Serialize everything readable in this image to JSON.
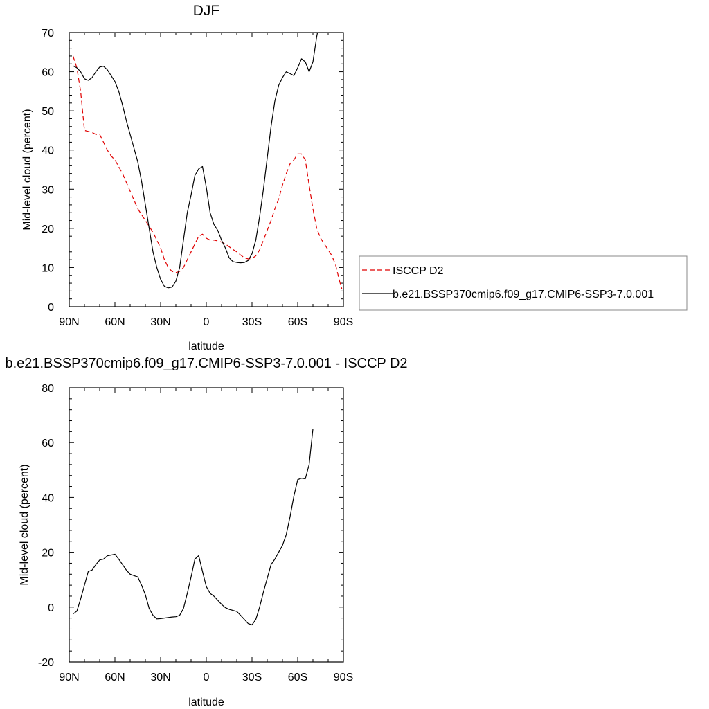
{
  "chart_data": [
    {
      "type": "line",
      "title": "DJF",
      "xlabel": "latitude",
      "ylabel": "Mid-level cloud (percent)",
      "xlim": [
        -90,
        90
      ],
      "ylim": [
        0,
        70
      ],
      "x_ticks": [
        {
          "value": -90,
          "label": "90N"
        },
        {
          "value": -60,
          "label": "60N"
        },
        {
          "value": -30,
          "label": "30N"
        },
        {
          "value": 0,
          "label": "0"
        },
        {
          "value": 30,
          "label": "30S"
        },
        {
          "value": 60,
          "label": "60S"
        },
        {
          "value": 90,
          "label": "90S"
        }
      ],
      "y_ticks": [
        {
          "value": 0,
          "label": "0"
        },
        {
          "value": 10,
          "label": "10"
        },
        {
          "value": 20,
          "label": "20"
        },
        {
          "value": 30,
          "label": "30"
        },
        {
          "value": 40,
          "label": "40"
        },
        {
          "value": 50,
          "label": "50"
        },
        {
          "value": 60,
          "label": "60"
        },
        {
          "value": 70,
          "label": "70"
        }
      ],
      "legend": {
        "position": "right"
      },
      "series": [
        {
          "name": "ISCCP D2",
          "color": "#e00000",
          "dash": true,
          "points": [
            [
              -87.5,
              64
            ],
            [
              -85,
              61
            ],
            [
              -82.5,
              55
            ],
            [
              -80,
              45
            ],
            [
              -75,
              44.5
            ],
            [
              -72.5,
              44
            ],
            [
              -70,
              44
            ],
            [
              -67.5,
              42
            ],
            [
              -65,
              40
            ],
            [
              -62.5,
              38.5
            ],
            [
              -60,
              37.5
            ],
            [
              -55,
              34
            ],
            [
              -50,
              29.5
            ],
            [
              -45,
              25
            ],
            [
              -40,
              22
            ],
            [
              -35,
              19
            ],
            [
              -30,
              15
            ],
            [
              -27.5,
              12
            ],
            [
              -25,
              10
            ],
            [
              -22.5,
              9
            ],
            [
              -20,
              8.7
            ],
            [
              -17.5,
              9
            ],
            [
              -15,
              10
            ],
            [
              -12.5,
              12
            ],
            [
              -10,
              14
            ],
            [
              -7.5,
              16
            ],
            [
              -5,
              18
            ],
            [
              -2.5,
              18.5
            ],
            [
              0,
              17.5
            ],
            [
              2.5,
              17
            ],
            [
              5,
              17
            ],
            [
              7.5,
              16.8
            ],
            [
              10,
              16.5
            ],
            [
              12.5,
              16
            ],
            [
              15,
              15.3
            ],
            [
              17.5,
              14.6
            ],
            [
              20,
              14
            ],
            [
              22.5,
              13.2
            ],
            [
              25,
              12.5
            ],
            [
              27.5,
              12.2
            ],
            [
              30,
              12.3
            ],
            [
              32.5,
              13
            ],
            [
              35,
              14.5
            ],
            [
              37.5,
              17
            ],
            [
              40,
              19.5
            ],
            [
              42.5,
              22
            ],
            [
              45,
              25
            ],
            [
              47.5,
              27.5
            ],
            [
              50,
              31
            ],
            [
              52.5,
              34
            ],
            [
              55,
              36.5
            ],
            [
              57.5,
              37.5
            ],
            [
              60,
              39
            ],
            [
              62.5,
              39
            ],
            [
              65,
              37.5
            ],
            [
              67.5,
              31
            ],
            [
              70,
              25
            ],
            [
              72.5,
              20
            ],
            [
              75,
              17.5
            ],
            [
              77.5,
              16
            ],
            [
              80,
              14.5
            ],
            [
              82.5,
              13
            ],
            [
              85,
              10.5
            ],
            [
              87.5,
              6.5
            ],
            [
              89,
              4.5
            ]
          ]
        },
        {
          "name": "b.e21.BSSP370cmip6.f09_g17.CMIP6-SSP3-7.0.001",
          "color": "#000000",
          "dash": false,
          "points": [
            [
              -87.5,
              61.5
            ],
            [
              -85,
              61
            ],
            [
              -82.5,
              60
            ],
            [
              -80,
              58.2
            ],
            [
              -77.5,
              57.8
            ],
            [
              -75,
              58.5
            ],
            [
              -72.5,
              60
            ],
            [
              -70,
              61.2
            ],
            [
              -67.5,
              61.4
            ],
            [
              -65,
              60.5
            ],
            [
              -62.5,
              59
            ],
            [
              -60,
              57.5
            ],
            [
              -57.5,
              55
            ],
            [
              -55,
              51.5
            ],
            [
              -52.5,
              47.5
            ],
            [
              -50,
              44
            ],
            [
              -47.5,
              40.5
            ],
            [
              -45,
              37
            ],
            [
              -42.5,
              32
            ],
            [
              -40,
              26
            ],
            [
              -37.5,
              20
            ],
            [
              -35,
              14
            ],
            [
              -32.5,
              10
            ],
            [
              -30,
              7
            ],
            [
              -27.5,
              5.2
            ],
            [
              -25,
              4.8
            ],
            [
              -22.5,
              5
            ],
            [
              -20,
              6.5
            ],
            [
              -17.5,
              10
            ],
            [
              -15,
              17
            ],
            [
              -12.5,
              24
            ],
            [
              -10,
              28.5
            ],
            [
              -7.5,
              33.5
            ],
            [
              -5,
              35.2
            ],
            [
              -2.5,
              35.8
            ],
            [
              0,
              30.5
            ],
            [
              2.5,
              24
            ],
            [
              5,
              21
            ],
            [
              7.5,
              19.5
            ],
            [
              10,
              17
            ],
            [
              12.5,
              15
            ],
            [
              15,
              12.5
            ],
            [
              17.5,
              11.5
            ],
            [
              20,
              11.3
            ],
            [
              22.5,
              11.2
            ],
            [
              25,
              11.3
            ],
            [
              27.5,
              11.8
            ],
            [
              30,
              13.5
            ],
            [
              32.5,
              17
            ],
            [
              35,
              23
            ],
            [
              37.5,
              30
            ],
            [
              40,
              38
            ],
            [
              42.5,
              46
            ],
            [
              45,
              52.5
            ],
            [
              47.5,
              56.5
            ],
            [
              50,
              58.5
            ],
            [
              52.5,
              60
            ],
            [
              55,
              59.5
            ],
            [
              57.5,
              59
            ],
            [
              60,
              61
            ],
            [
              62.5,
              63.3
            ],
            [
              65,
              62.5
            ],
            [
              67.5,
              60
            ],
            [
              70,
              62.5
            ],
            [
              72.5,
              69
            ],
            [
              73,
              70
            ]
          ]
        }
      ]
    },
    {
      "type": "line",
      "title": "b.e21.BSSP370cmip6.f09_g17.CMIP6-SSP3-7.0.001 - ISCCP D2",
      "xlabel": "latitude",
      "ylabel": "Mid-level cloud (percent)",
      "xlim": [
        -90,
        90
      ],
      "ylim": [
        -20,
        80
      ],
      "x_ticks": [
        {
          "value": -90,
          "label": "90N"
        },
        {
          "value": -60,
          "label": "60N"
        },
        {
          "value": -30,
          "label": "30N"
        },
        {
          "value": 0,
          "label": "0"
        },
        {
          "value": 30,
          "label": "30S"
        },
        {
          "value": 60,
          "label": "60S"
        },
        {
          "value": 90,
          "label": "90S"
        }
      ],
      "y_ticks": [
        {
          "value": -20,
          "label": "-20"
        },
        {
          "value": 0,
          "label": "0"
        },
        {
          "value": 20,
          "label": "20"
        },
        {
          "value": 40,
          "label": "40"
        },
        {
          "value": 60,
          "label": "60"
        },
        {
          "value": 80,
          "label": "80"
        }
      ],
      "series": [
        {
          "color": "#000000",
          "dash": false,
          "points": [
            [
              -87.5,
              -2.5
            ],
            [
              -85,
              -1.5
            ],
            [
              -82.5,
              3
            ],
            [
              -80,
              8
            ],
            [
              -77.5,
              13
            ],
            [
              -75,
              13.5
            ],
            [
              -72.5,
              15.5
            ],
            [
              -70,
              17.2
            ],
            [
              -67.5,
              17.5
            ],
            [
              -65,
              18.7
            ],
            [
              -62.5,
              19
            ],
            [
              -60,
              19.3
            ],
            [
              -57.5,
              17.5
            ],
            [
              -55,
              15.5
            ],
            [
              -52.5,
              13.5
            ],
            [
              -50,
              12
            ],
            [
              -47.5,
              11.5
            ],
            [
              -45,
              11
            ],
            [
              -42.5,
              8
            ],
            [
              -40,
              4.5
            ],
            [
              -37.5,
              -0.5
            ],
            [
              -35,
              -3
            ],
            [
              -32.5,
              -4.3
            ],
            [
              -30,
              -4.2
            ],
            [
              -27.5,
              -4
            ],
            [
              -25,
              -3.8
            ],
            [
              -22.5,
              -3.6
            ],
            [
              -20,
              -3.5
            ],
            [
              -17.5,
              -3
            ],
            [
              -15,
              -0.5
            ],
            [
              -12.5,
              5
            ],
            [
              -10,
              11
            ],
            [
              -7.5,
              17.5
            ],
            [
              -5,
              18.8
            ],
            [
              -2.5,
              13
            ],
            [
              0,
              7.5
            ],
            [
              2.5,
              5
            ],
            [
              5,
              4
            ],
            [
              7.5,
              2.5
            ],
            [
              10,
              1
            ],
            [
              12.5,
              -0.2
            ],
            [
              15,
              -0.8
            ],
            [
              17.5,
              -1.2
            ],
            [
              20,
              -1.6
            ],
            [
              22.5,
              -3
            ],
            [
              25,
              -4.5
            ],
            [
              27.5,
              -6
            ],
            [
              30,
              -6.5
            ],
            [
              32.5,
              -4.5
            ],
            [
              35,
              0
            ],
            [
              37.5,
              5.5
            ],
            [
              40,
              10.5
            ],
            [
              42.5,
              15.5
            ],
            [
              45,
              17.5
            ],
            [
              47.5,
              20
            ],
            [
              50,
              22.5
            ],
            [
              52.5,
              26.5
            ],
            [
              55,
              33
            ],
            [
              57.5,
              40.5
            ],
            [
              60,
              46.5
            ],
            [
              62.5,
              47
            ],
            [
              65,
              46.8
            ],
            [
              67.5,
              52
            ],
            [
              70,
              65
            ]
          ]
        }
      ]
    }
  ]
}
